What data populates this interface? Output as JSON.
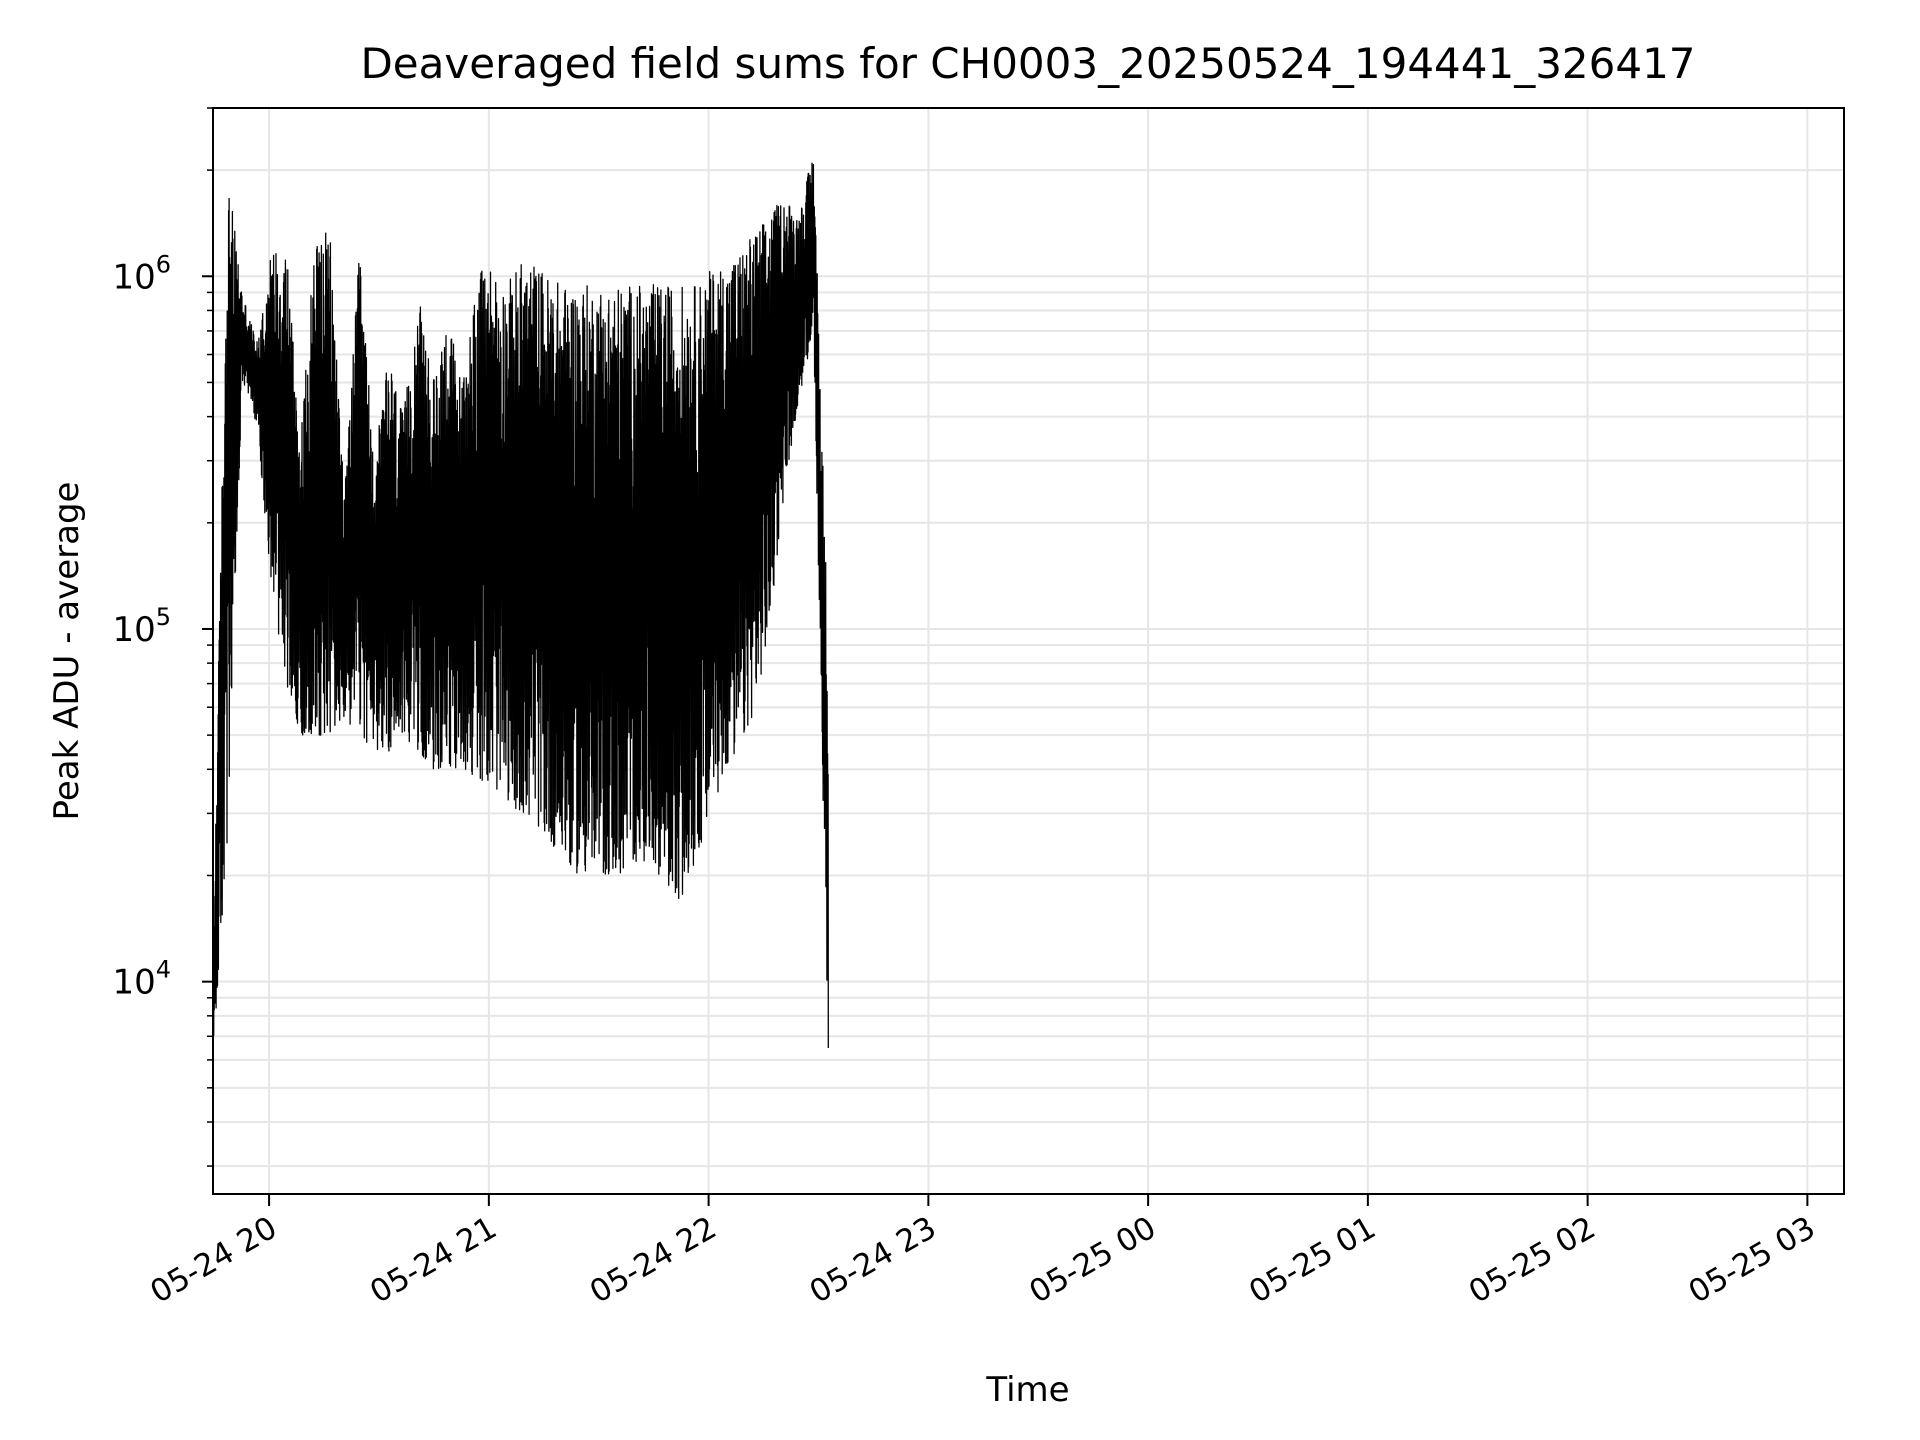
{
  "chart_data": {
    "type": "line",
    "title": "Deaveraged field sums for CH0003_20250524_194441_326417",
    "xlabel": "Time",
    "ylabel": "Peak ADU - average",
    "yscale": "log",
    "ylim": [
      2500,
      3000000
    ],
    "xlim": [
      "2025-05-24 19:44:41",
      "2025-05-25 03:10:00"
    ],
    "grid": true,
    "line_color": "#000000",
    "x_ticks": [
      "05-24 20",
      "05-24 21",
      "05-24 22",
      "05-24 23",
      "05-25 00",
      "05-25 01",
      "05-25 02",
      "05-25 03"
    ],
    "y_ticks": [
      {
        "base": "10",
        "exp": "4",
        "value": 10000
      },
      {
        "base": "10",
        "exp": "5",
        "value": 100000
      },
      {
        "base": "10",
        "exp": "6",
        "value": 1000000
      }
    ],
    "series": [
      {
        "x_start": "2025-05-24 19:44:41",
        "x_step_minutes": 4,
        "lows": [
          6000,
          25000,
          500000,
          380000,
          130000,
          70000,
          50000,
          50000,
          50000,
          55000,
          50000,
          45000,
          45000,
          50000,
          45000,
          40000,
          40000,
          40000,
          38000,
          36000,
          33000,
          30000,
          28000,
          25000,
          22000,
          20000,
          20000,
          20000,
          20000,
          22000,
          22000,
          18000,
          17000,
          22000,
          30000,
          40000,
          45000,
          60000,
          100000,
          250000,
          450000,
          700000,
          6000
        ],
        "highs": [
          11000,
          2000000,
          900000,
          650000,
          1200000,
          1300000,
          350000,
          1400000,
          1300000,
          250000,
          1200000,
          300000,
          600000,
          400000,
          900000,
          500000,
          800000,
          500000,
          1000000,
          1100000,
          950000,
          1100000,
          1100000,
          1000000,
          950000,
          950000,
          950000,
          950000,
          950000,
          950000,
          950000,
          950000,
          950000,
          950000,
          1050000,
          1100000,
          1200000,
          1350000,
          1500000,
          1700000,
          1500000,
          2300000,
          90000
        ]
      }
    ]
  }
}
